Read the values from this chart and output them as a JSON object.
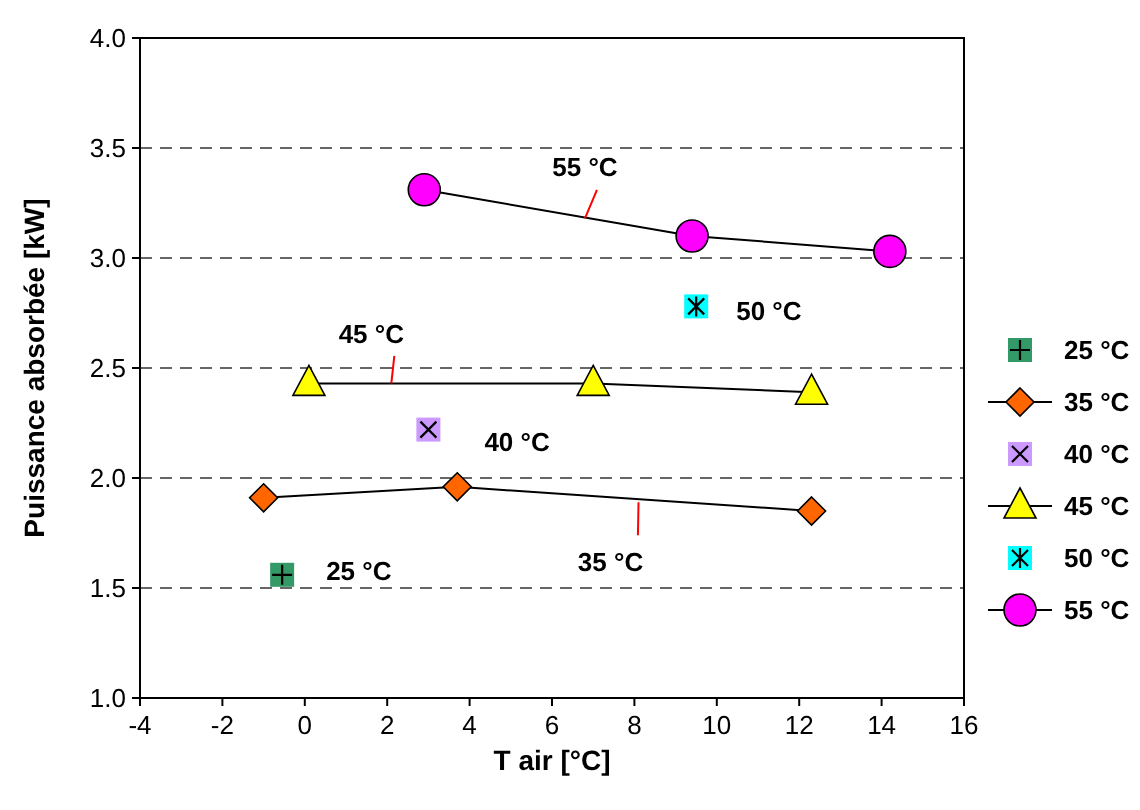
{
  "chart_data": {
    "type": "line",
    "xlabel": "T air [°C]",
    "ylabel": "Puissance absorbée [kW]",
    "xlim": [
      -4,
      16
    ],
    "xticks": [
      -4,
      -2,
      0,
      2,
      4,
      6,
      8,
      10,
      12,
      14,
      16
    ],
    "ylim": [
      1,
      4
    ],
    "yticks": [
      {
        "value": 1,
        "label": "1.0"
      },
      {
        "value": 1.5,
        "label": "1.5"
      },
      {
        "value": 2,
        "label": "2.0"
      },
      {
        "value": 2.5,
        "label": "2.5"
      },
      {
        "value": 3,
        "label": "3.0"
      },
      {
        "value": 3.5,
        "label": "3.5"
      },
      {
        "value": 4,
        "label": "4.0"
      }
    ],
    "grid": "y",
    "legend": "right",
    "series": [
      {
        "name": "25 °C",
        "type": "scatter",
        "marker": "square",
        "color": "#339966",
        "x": [
          -0.55
        ],
        "values": [
          1.56
        ]
      },
      {
        "name": "35 °C",
        "type": "line",
        "marker": "diamond",
        "color": "#ff6600",
        "x": [
          -1.0,
          3.7,
          12.3
        ],
        "values": [
          1.91,
          1.96,
          1.85
        ]
      },
      {
        "name": "40 °C",
        "type": "scatter",
        "marker": "square",
        "color": "#cc99ff",
        "x": [
          3.0
        ],
        "values": [
          2.22
        ]
      },
      {
        "name": "45 °C",
        "type": "line",
        "marker": "triangle",
        "color": "#ffff00",
        "x": [
          0.1,
          7.0,
          12.3
        ],
        "values": [
          2.43,
          2.43,
          2.39
        ]
      },
      {
        "name": "50 °C",
        "type": "scatter",
        "marker": "square",
        "color": "#00ffff",
        "x": [
          9.5
        ],
        "values": [
          2.78
        ]
      },
      {
        "name": "55 °C",
        "type": "line",
        "marker": "circle",
        "color": "#ff00ff",
        "x": [
          2.9,
          9.4,
          14.2
        ],
        "values": [
          3.31,
          3.1,
          3.03
        ]
      }
    ],
    "annotations": [
      {
        "text": "55 °C",
        "x": 6.8,
        "y": 3.18
      },
      {
        "text": "45 °C",
        "x": 2.1,
        "y": 2.43
      },
      {
        "text": "35 °C",
        "x": 8.1,
        "y": 1.89
      },
      {
        "text": "25 °C",
        "x": -0.55,
        "y": 1.56
      },
      {
        "text": "40 °C",
        "x": 3.0,
        "y": 2.22
      },
      {
        "text": "50 °C",
        "x": 9.5,
        "y": 2.78
      }
    ]
  }
}
